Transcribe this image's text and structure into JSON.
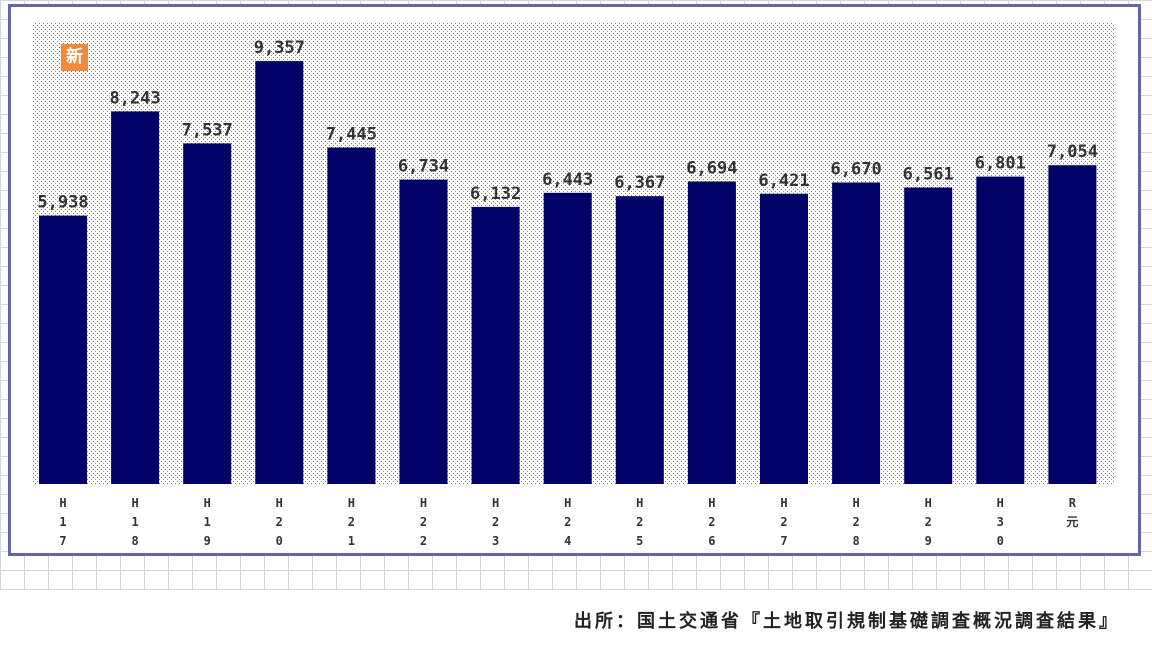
{
  "chart_data": {
    "type": "bar",
    "categories": [
      "H17",
      "H18",
      "H19",
      "H20",
      "H21",
      "H22",
      "H23",
      "H24",
      "H25",
      "H26",
      "H27",
      "H28",
      "H29",
      "H30",
      "R元"
    ],
    "tick_labels": [
      [
        "H",
        "1",
        "7"
      ],
      [
        "H",
        "1",
        "8"
      ],
      [
        "H",
        "1",
        "9"
      ],
      [
        "H",
        "2",
        "0"
      ],
      [
        "H",
        "2",
        "1"
      ],
      [
        "H",
        "2",
        "2"
      ],
      [
        "H",
        "2",
        "3"
      ],
      [
        "H",
        "2",
        "4"
      ],
      [
        "H",
        "2",
        "5"
      ],
      [
        "H",
        "2",
        "6"
      ],
      [
        "H",
        "2",
        "7"
      ],
      [
        "H",
        "2",
        "8"
      ],
      [
        "H",
        "2",
        "9"
      ],
      [
        "H",
        "3",
        "0"
      ],
      [
        "R",
        "元"
      ]
    ],
    "values": [
      5938,
      8243,
      7537,
      9357,
      7445,
      6734,
      6132,
      6443,
      6367,
      6694,
      6421,
      6670,
      6561,
      6801,
      7054
    ],
    "data_labels": [
      "5,938",
      "8,243",
      "7,537",
      "9,357",
      "7,445",
      "6,734",
      "6,132",
      "6,443",
      "6,367",
      "6,694",
      "6,421",
      "6,670",
      "6,561",
      "6,801",
      "7,054"
    ],
    "ylim": [
      0,
      10200
    ],
    "title": "",
    "xlabel": "",
    "ylabel": "",
    "grid": false,
    "colors": {
      "bar": "#000066",
      "plot_pattern": "#7a7a9e",
      "frame": "#6666a6"
    }
  },
  "badge": {
    "text": "新",
    "color": "#f08a3c"
  },
  "source": {
    "text": "出所：国土交通省『土地取引規制基礎調査概況調査結果』"
  }
}
